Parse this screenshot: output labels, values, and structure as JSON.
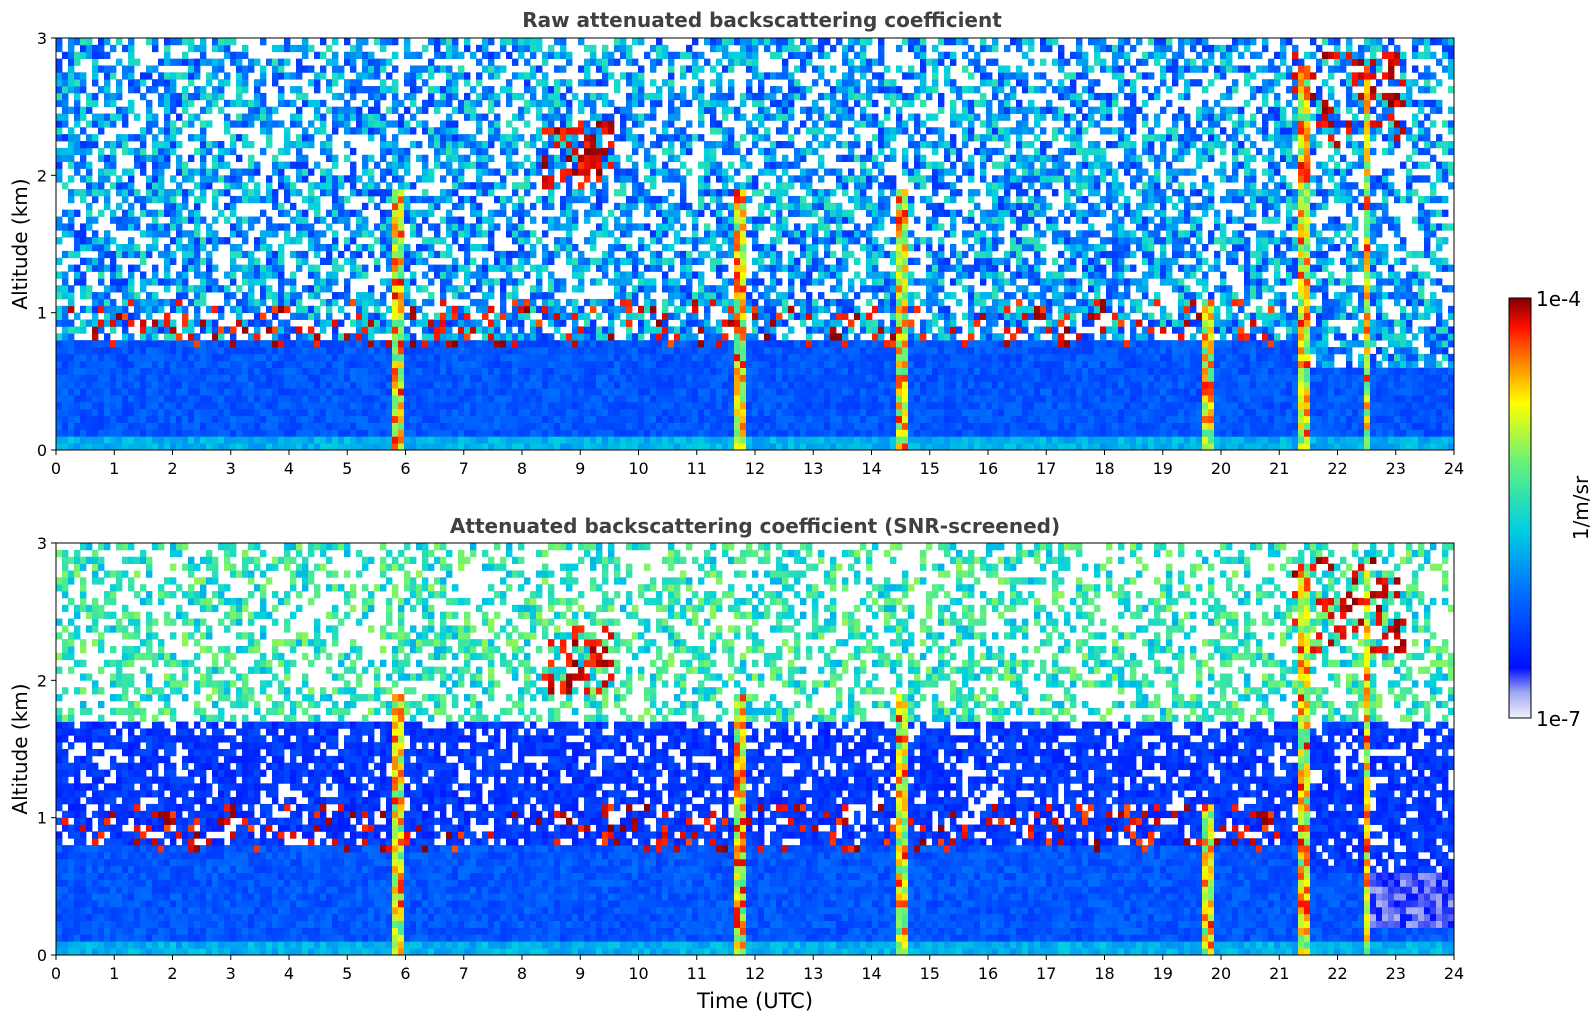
{
  "chart_data": [
    {
      "type": "heatmap",
      "title": "Raw attenuated backscattering coefficient",
      "xlabel": "",
      "ylabel": "Altitude (km)",
      "xlim": [
        0,
        24
      ],
      "ylim": [
        0,
        3
      ],
      "x_ticks": [
        "0",
        "1",
        "2",
        "3",
        "4",
        "5",
        "6",
        "7",
        "8",
        "9",
        "10",
        "11",
        "12",
        "13",
        "14",
        "15",
        "16",
        "17",
        "18",
        "19",
        "20",
        "21",
        "22",
        "23",
        "24"
      ],
      "y_ticks": [
        "0",
        "1",
        "2",
        "3"
      ],
      "grid": false,
      "features": {
        "boundary_layer_top_km": 0.8,
        "low_cloud_base_km": [
          0.75,
          1.1
        ],
        "mid_cloud_km": [
          1.9,
          2.4
        ],
        "high_cloud_km": [
          2.2,
          2.9
        ],
        "precipitation_columns_utc": [
          5.85,
          11.75,
          14.55,
          19.8,
          21.4,
          22.5
        ]
      }
    },
    {
      "type": "heatmap",
      "title": "Attenuated backscattering coefficient (SNR-screened)",
      "xlabel": "Time (UTC)",
      "ylabel": "Altitude (km)",
      "xlim": [
        0,
        24
      ],
      "ylim": [
        0,
        3
      ],
      "x_ticks": [
        "0",
        "1",
        "2",
        "3",
        "4",
        "5",
        "6",
        "7",
        "8",
        "9",
        "10",
        "11",
        "12",
        "13",
        "14",
        "15",
        "16",
        "17",
        "18",
        "19",
        "20",
        "21",
        "22",
        "23",
        "24"
      ],
      "y_ticks": [
        "0",
        "1",
        "2",
        "3"
      ],
      "grid": false
    }
  ],
  "colorbar": {
    "label": "1/m/sr",
    "max_label": "1e-4",
    "min_label": "1e-7",
    "scale": "log",
    "range": [
      1e-07,
      0.0001
    ],
    "colors": [
      "#e8e8f8",
      "#0000ff",
      "#00a0ff",
      "#20e0c0",
      "#a0f060",
      "#ffff00",
      "#ff9000",
      "#ff2000",
      "#8b0000"
    ]
  }
}
